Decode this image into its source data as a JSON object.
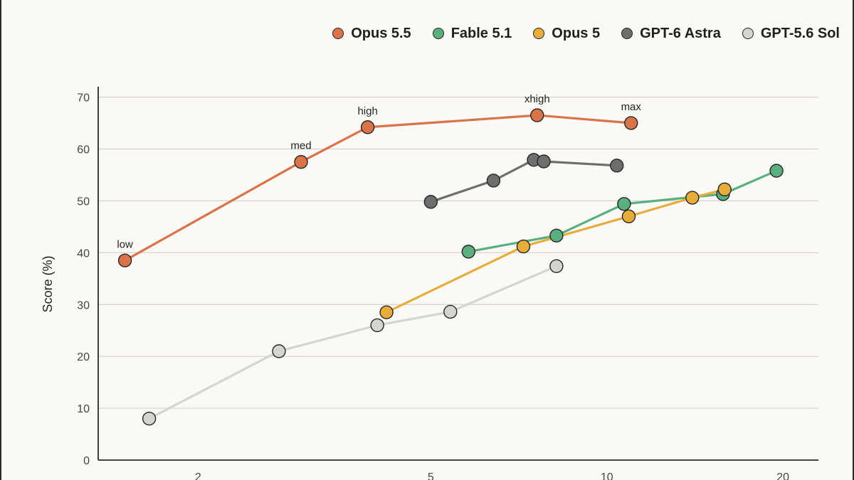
{
  "chart_data": {
    "type": "line",
    "x_scale": "log",
    "xlabel": "",
    "ylabel": "Score (%)",
    "xlim": [
      1.35,
      23
    ],
    "ylim": [
      0,
      72
    ],
    "x_ticks": [
      2,
      5,
      10,
      20
    ],
    "y_ticks": [
      0,
      10,
      20,
      30,
      40,
      50,
      60,
      70
    ],
    "grid": "horizontal",
    "legend_position": "top-right",
    "series": [
      {
        "name": "Opus 5.5",
        "color": "#d9734a",
        "points": [
          {
            "x": 1.5,
            "y": 38.5,
            "label": "low"
          },
          {
            "x": 3.0,
            "y": 57.5,
            "label": "med"
          },
          {
            "x": 3.9,
            "y": 64.2,
            "label": "high"
          },
          {
            "x": 7.6,
            "y": 66.5,
            "label": "xhigh"
          },
          {
            "x": 11.0,
            "y": 65.0,
            "label": "max"
          }
        ]
      },
      {
        "name": "Fable 5.1",
        "color": "#5aaf7f",
        "points": [
          {
            "x": 5.8,
            "y": 40.2
          },
          {
            "x": 8.2,
            "y": 43.3
          },
          {
            "x": 10.7,
            "y": 49.4
          },
          {
            "x": 15.8,
            "y": 51.3
          },
          {
            "x": 19.5,
            "y": 55.8
          }
        ]
      },
      {
        "name": "Opus 5",
        "color": "#e6ad3d",
        "points": [
          {
            "x": 4.2,
            "y": 28.5
          },
          {
            "x": 7.2,
            "y": 41.2
          },
          {
            "x": 10.9,
            "y": 47.0
          },
          {
            "x": 14.0,
            "y": 50.6
          },
          {
            "x": 15.9,
            "y": 52.2
          }
        ]
      },
      {
        "name": "GPT-6 Astra",
        "color": "#6e6e6e",
        "points": [
          {
            "x": 5.0,
            "y": 49.8
          },
          {
            "x": 6.4,
            "y": 53.9
          },
          {
            "x": 7.5,
            "y": 57.9
          },
          {
            "x": 7.8,
            "y": 57.6
          },
          {
            "x": 10.4,
            "y": 56.8
          }
        ]
      },
      {
        "name": "GPT-5.6 Sol",
        "color": "#d6d4cf",
        "points": [
          {
            "x": 1.65,
            "y": 8.0
          },
          {
            "x": 2.75,
            "y": 21.0
          },
          {
            "x": 4.05,
            "y": 26.0
          },
          {
            "x": 5.4,
            "y": 28.6
          },
          {
            "x": 8.2,
            "y": 37.4
          }
        ]
      }
    ]
  }
}
